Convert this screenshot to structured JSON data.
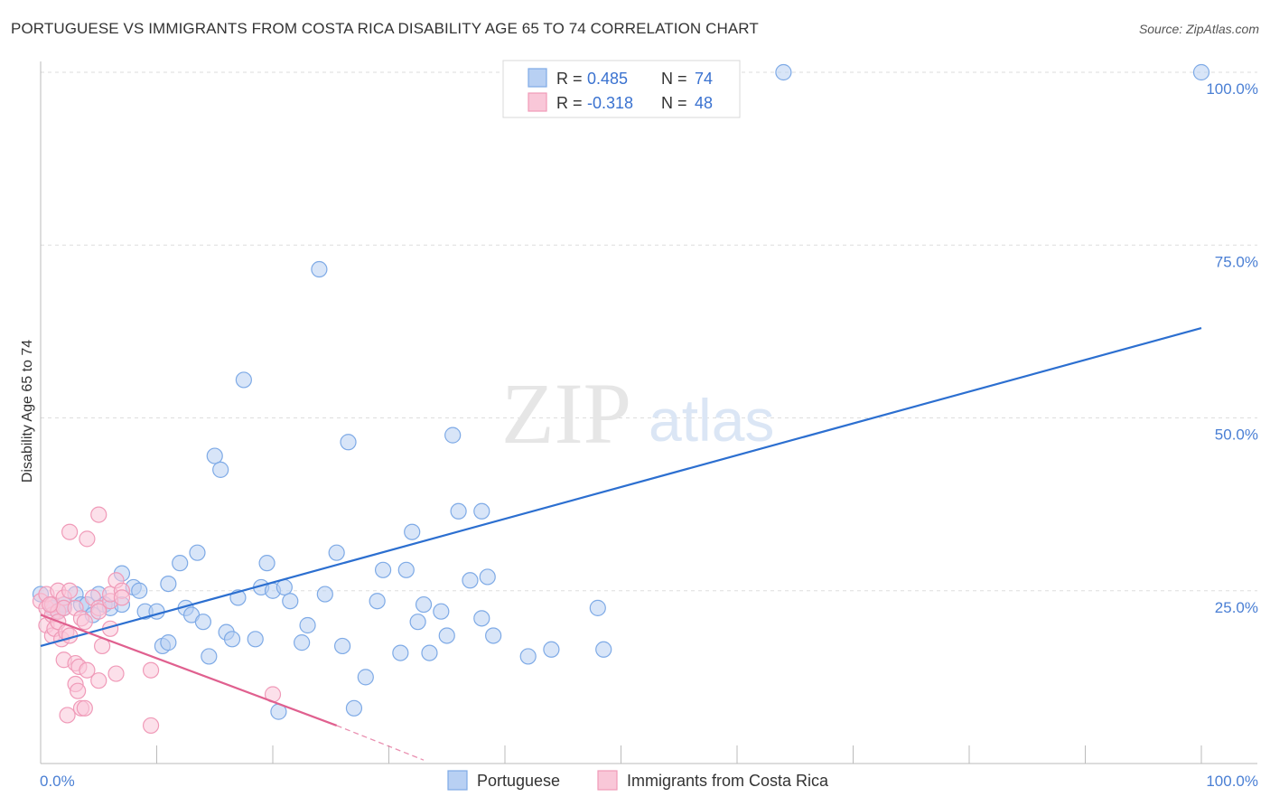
{
  "title": "PORTUGUESE VS IMMIGRANTS FROM COSTA RICA DISABILITY AGE 65 TO 74 CORRELATION CHART",
  "source": "Source: ZipAtlas.com",
  "watermark": {
    "zip": "ZIP",
    "atlas": "atlas"
  },
  "chart_data": {
    "type": "scatter",
    "title": "PORTUGUESE VS IMMIGRANTS FROM COSTA RICA DISABILITY AGE 65 TO 74 CORRELATION CHART",
    "xlabel": "",
    "ylabel": "Disability Age 65 to 74",
    "xlim": [
      0,
      100
    ],
    "ylim": [
      0,
      100
    ],
    "x_tick_labels": [
      "0.0%",
      "100.0%"
    ],
    "y_ticks": [
      25,
      50,
      75,
      100
    ],
    "y_tick_labels": [
      "25.0%",
      "50.0%",
      "75.0%",
      "100.0%"
    ],
    "grid": true,
    "legend_position": "top-center",
    "stats": [
      {
        "r_label": "R = ",
        "r_value": "0.485",
        "n_label": "N = ",
        "n_value": "74"
      },
      {
        "r_label": "R = ",
        "r_value": "-0.318",
        "n_label": "N = ",
        "n_value": "48"
      }
    ],
    "series": [
      {
        "name": "Portuguese",
        "color": "#7eaae6",
        "fill": "#b8d0f3",
        "line_color": "#2c6fd0",
        "trend": {
          "x0": 0,
          "y0": 17.0,
          "x1": 100,
          "y1": 63.0,
          "dashed_to": null
        },
        "points": [
          [
            0,
            24.5
          ],
          [
            1,
            22.5
          ],
          [
            1,
            23
          ],
          [
            1.5,
            22
          ],
          [
            2,
            23
          ],
          [
            2,
            22.5
          ],
          [
            3,
            24.5
          ],
          [
            3.5,
            23
          ],
          [
            4,
            23
          ],
          [
            4.5,
            21.5
          ],
          [
            5,
            24.5
          ],
          [
            5.5,
            23
          ],
          [
            6,
            22.5
          ],
          [
            7,
            27.5
          ],
          [
            7,
            23
          ],
          [
            8,
            25.5
          ],
          [
            8.5,
            25
          ],
          [
            9,
            22
          ],
          [
            10,
            22
          ],
          [
            10.5,
            17
          ],
          [
            11,
            17.5
          ],
          [
            11,
            26
          ],
          [
            12,
            29
          ],
          [
            12.5,
            22.5
          ],
          [
            13,
            21.5
          ],
          [
            13.5,
            30.5
          ],
          [
            14,
            20.5
          ],
          [
            14.5,
            15.5
          ],
          [
            15,
            44.5
          ],
          [
            15.5,
            42.5
          ],
          [
            16,
            19
          ],
          [
            16.5,
            18
          ],
          [
            17,
            24
          ],
          [
            17.5,
            55.5
          ],
          [
            18.5,
            18
          ],
          [
            19,
            25.5
          ],
          [
            19.5,
            29
          ],
          [
            20,
            25
          ],
          [
            20.5,
            7.5
          ],
          [
            21,
            25.5
          ],
          [
            21.5,
            23.5
          ],
          [
            22.5,
            17.5
          ],
          [
            23,
            20
          ],
          [
            24,
            71.5
          ],
          [
            24.5,
            24.5
          ],
          [
            25.5,
            30.5
          ],
          [
            26,
            17
          ],
          [
            26.5,
            46.5
          ],
          [
            27,
            8
          ],
          [
            28,
            12.5
          ],
          [
            29,
            23.5
          ],
          [
            29.5,
            28
          ],
          [
            31,
            16
          ],
          [
            31.5,
            28
          ],
          [
            32,
            33.5
          ],
          [
            32.5,
            20.5
          ],
          [
            33,
            23
          ],
          [
            33.5,
            16
          ],
          [
            34.5,
            22
          ],
          [
            35,
            18.5
          ],
          [
            35.5,
            47.5
          ],
          [
            36,
            36.5
          ],
          [
            37,
            26.5
          ],
          [
            38,
            36.5
          ],
          [
            38,
            21
          ],
          [
            38.5,
            27
          ],
          [
            39,
            18.5
          ],
          [
            42,
            15.5
          ],
          [
            44,
            16.5
          ],
          [
            48,
            22.5
          ],
          [
            48.5,
            16.5
          ],
          [
            64,
            100
          ],
          [
            100,
            100
          ],
          [
            1.5,
            22
          ]
        ]
      },
      {
        "name": "Immigrants from Costa Rica",
        "color": "#f09ab8",
        "fill": "#f9c7d8",
        "line_color": "#e0608f",
        "trend": {
          "x0": 0,
          "y0": 21.5,
          "x1": 25.5,
          "y1": 5.5,
          "dashed_to": [
            33,
            0.5
          ]
        },
        "points": [
          [
            0,
            23.5
          ],
          [
            0.5,
            22.5
          ],
          [
            0.5,
            24.5
          ],
          [
            0.5,
            20
          ],
          [
            1,
            21.5
          ],
          [
            1,
            18.5
          ],
          [
            1,
            23
          ],
          [
            1.2,
            19.5
          ],
          [
            1.5,
            25
          ],
          [
            1.5,
            22
          ],
          [
            1.5,
            20.5
          ],
          [
            1.8,
            18
          ],
          [
            2,
            24
          ],
          [
            2,
            22.5
          ],
          [
            2,
            15
          ],
          [
            2.2,
            19
          ],
          [
            2.3,
            7
          ],
          [
            2.5,
            33.5
          ],
          [
            2.5,
            25
          ],
          [
            2.5,
            18.5
          ],
          [
            3,
            22.5
          ],
          [
            3,
            14.5
          ],
          [
            3,
            11.5
          ],
          [
            3.2,
            10.5
          ],
          [
            3.3,
            14
          ],
          [
            3.5,
            21
          ],
          [
            3.5,
            8
          ],
          [
            3.8,
            20.5
          ],
          [
            3.8,
            8
          ],
          [
            4,
            32.5
          ],
          [
            4,
            13.5
          ],
          [
            4.5,
            24
          ],
          [
            5,
            22.5
          ],
          [
            5,
            36
          ],
          [
            5,
            12
          ],
          [
            5,
            22
          ],
          [
            5.3,
            17
          ],
          [
            6,
            19.5
          ],
          [
            6,
            23.5
          ],
          [
            6,
            24.5
          ],
          [
            6.5,
            26.5
          ],
          [
            6.5,
            13
          ],
          [
            7,
            25
          ],
          [
            7,
            24
          ],
          [
            9.5,
            13.5
          ],
          [
            9.5,
            5.5
          ],
          [
            20,
            10
          ],
          [
            0.8,
            23
          ]
        ]
      }
    ]
  }
}
